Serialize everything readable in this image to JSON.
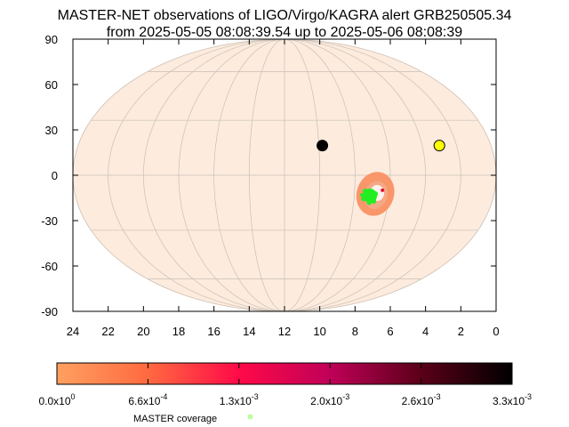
{
  "chart_data": {
    "type": "scatter",
    "title_lines": [
      "MASTER-NET observations of LIGO/Virgo/KAGRA alert GRB250505.34",
      "from 2025-05-05 08:08:39.54 up to 2025-05-06 08:08:39"
    ],
    "projection": "mollweide",
    "x_axis": {
      "quantity": "right ascension (hours)",
      "range": [
        24,
        0
      ],
      "ticks": [
        "24",
        "22",
        "20",
        "18",
        "16",
        "14",
        "12",
        "10",
        "8",
        "6",
        "4",
        "2",
        "0"
      ]
    },
    "y_axis": {
      "quantity": "declination (degrees)",
      "range": [
        -90,
        90
      ],
      "ticks": [
        "90",
        "60",
        "30",
        "0",
        "-30",
        "-60",
        "-90"
      ]
    },
    "grid": true,
    "sky_background_color": "#fdebdd",
    "markers": [
      {
        "kind": "black-circle",
        "ra_h": 9.8,
        "dec": 16,
        "color": "#000000"
      },
      {
        "kind": "yellow-circle",
        "ra_h": 3.0,
        "dec": 16,
        "color": "#ffff00"
      }
    ],
    "probability_region": {
      "ra_h": 6.8,
      "dec": -10,
      "color": "#f9966a"
    },
    "coverage_region": {
      "ra_h": 7.1,
      "dec": -11,
      "color": "#22ee22"
    },
    "colorbar": {
      "tick_labels": [
        {
          "mantissa": "0.0x10",
          "exp": "0"
        },
        {
          "mantissa": "6.6x10",
          "exp": "-4"
        },
        {
          "mantissa": "1.3x10",
          "exp": "-3"
        },
        {
          "mantissa": "2.0x10",
          "exp": "-3"
        },
        {
          "mantissa": "2.6x10",
          "exp": "-3"
        },
        {
          "mantissa": "3.3x10",
          "exp": "-3"
        }
      ],
      "colors": [
        "#ffa060",
        "#ff6a40",
        "#ff0a48",
        "#c00058",
        "#5a0018",
        "#000000"
      ]
    },
    "legend": {
      "label": "MASTER coverage",
      "marker_color": "#bbff99"
    }
  }
}
